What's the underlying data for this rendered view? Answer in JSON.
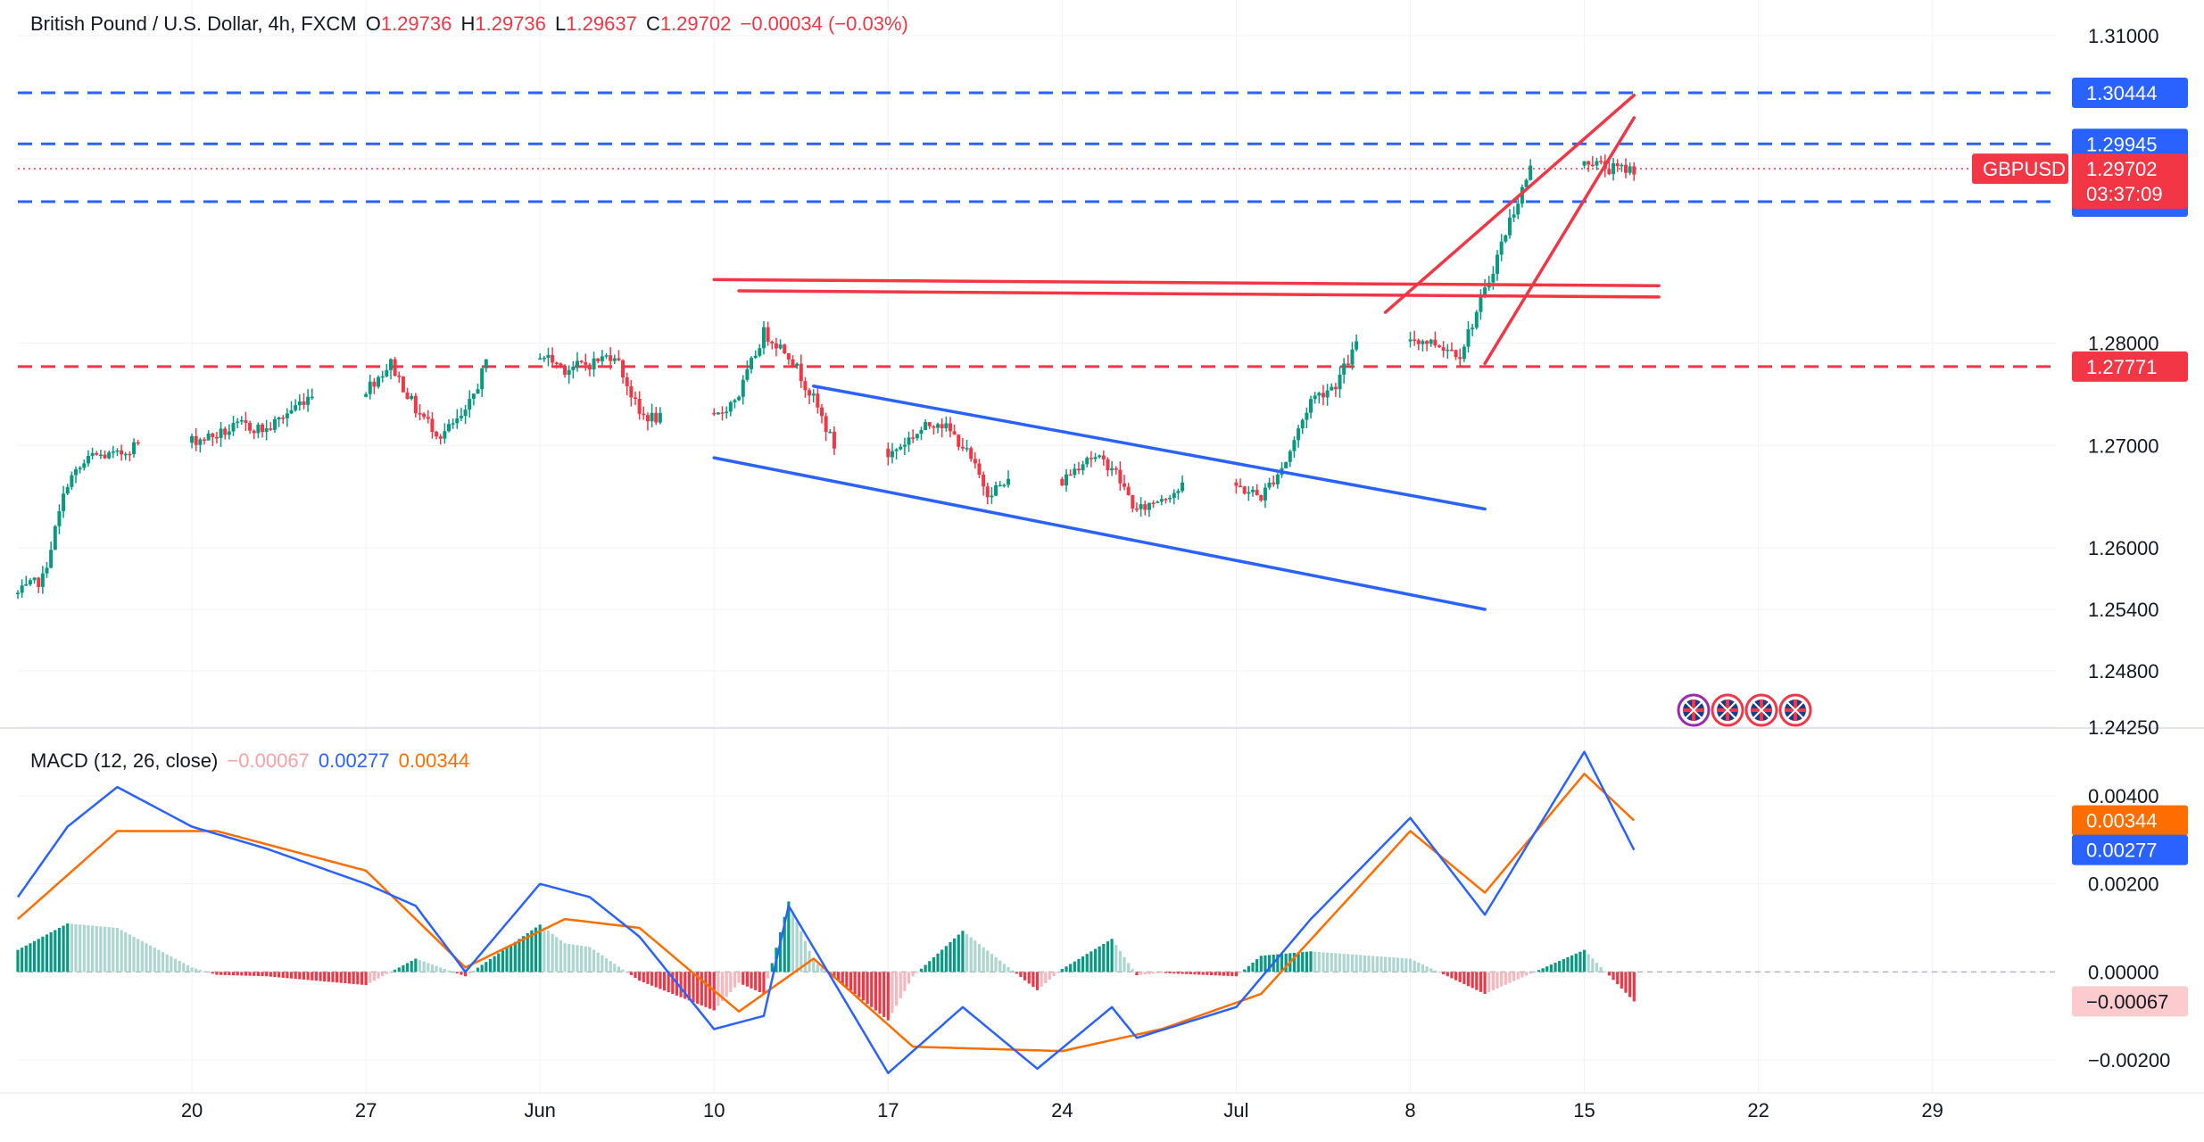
{
  "header": {
    "symbol_title": "British Pound / U.S. Dollar, 4h, FXCM",
    "open_label": "O",
    "open": "1.29736",
    "high_label": "H",
    "high": "1.29736",
    "low_label": "L",
    "low": "1.29637",
    "close_label": "C",
    "close": "1.29702",
    "change": "−0.00034 (−0.03%)"
  },
  "macd_header": {
    "title": "MACD (12, 26, close)",
    "histogram": "−0.00067",
    "macd": "0.00277",
    "signal": "0.00344"
  },
  "colors": {
    "up": "#089981",
    "down": "#f23645",
    "up_light": "#acd6cf",
    "down_light": "#f7b7bd",
    "blue_line": "#2962ff",
    "red_line": "#f23645",
    "macd_line": "#2962ff",
    "signal_line": "#ff6d00"
  },
  "price_axis": {
    "ticks": [
      "1.31000",
      "1.29800",
      "1.28000",
      "1.27000",
      "1.26000",
      "1.25400",
      "1.24800",
      "1.24250"
    ],
    "tick_values": [
      1.31,
      1.298,
      1.28,
      1.27,
      1.26,
      1.254,
      1.248,
      1.2425
    ]
  },
  "price_tags": [
    {
      "label": "1.30444",
      "value": 1.30444,
      "color": "#2962ff",
      "line_style": "dashed"
    },
    {
      "label": "1.29945",
      "value": 1.29945,
      "color": "#2962ff",
      "line_style": "dashed"
    },
    {
      "label": "1.29381",
      "value": 1.29381,
      "color": "#2962ff",
      "line_style": "dashed"
    },
    {
      "label": "1.27771",
      "value": 1.27771,
      "color": "#f23645",
      "line_style": "dashed"
    }
  ],
  "current_price": {
    "symbol_label": "GBPUSD",
    "price_label": "1.29702",
    "value": 1.29702,
    "countdown": "03:37:09"
  },
  "macd_axis": {
    "ticks": [
      "0.00400",
      "0.00200",
      "0.00000",
      "−0.00200"
    ],
    "tick_values": [
      0.004,
      0.002,
      0.0,
      -0.002
    ],
    "signal_tag": "0.00344",
    "signal_value": 0.00344,
    "macd_tag": "0.00277",
    "macd_value": 0.00277,
    "hist_tag": "−0.00067",
    "hist_value": -0.00067
  },
  "time_axis": {
    "labels": [
      "20",
      "27",
      "Jun",
      "10",
      "17",
      "24",
      "Jul",
      "8",
      "15",
      "22",
      "29"
    ],
    "label_dates": [
      "2024-05-20",
      "2024-05-27",
      "2024-06-03",
      "2024-06-10",
      "2024-06-17",
      "2024-06-24",
      "2024-07-01",
      "2024-07-08",
      "2024-07-15",
      "2024-07-22",
      "2024-07-29"
    ]
  },
  "events_icon": "uk-flag-icon",
  "chart_data": {
    "type": "candlestick",
    "symbol": "GBPUSD",
    "interval": "4h",
    "ylim": [
      1.2425,
      1.3135
    ],
    "xlim": [
      "2024-05-13",
      "2024-08-03"
    ],
    "price_path": [
      [
        "2024-05-13",
        1.2555
      ],
      [
        "2024-05-14",
        1.257
      ],
      [
        "2024-05-15",
        1.2665
      ],
      [
        "2024-05-16",
        1.269
      ],
      [
        "2024-05-17",
        1.269
      ],
      [
        "2024-05-20",
        1.2705
      ],
      [
        "2024-05-21",
        1.271
      ],
      [
        "2024-05-22",
        1.272
      ],
      [
        "2024-05-23",
        1.2715
      ],
      [
        "2024-05-24",
        1.2735
      ],
      [
        "2024-05-27",
        1.2755
      ],
      [
        "2024-05-28",
        1.278
      ],
      [
        "2024-05-29",
        1.2735
      ],
      [
        "2024-05-30",
        1.271
      ],
      [
        "2024-05-31",
        1.273
      ],
      [
        "2024-06-03",
        1.279
      ],
      [
        "2024-06-04",
        1.2775
      ],
      [
        "2024-06-05",
        1.278
      ],
      [
        "2024-06-06",
        1.279
      ],
      [
        "2024-06-07",
        1.273
      ],
      [
        "2024-06-10",
        1.2725
      ],
      [
        "2024-06-11",
        1.275
      ],
      [
        "2024-06-12",
        1.281
      ],
      [
        "2024-06-13",
        1.279
      ],
      [
        "2024-06-14",
        1.2745
      ],
      [
        "2024-06-17",
        1.269
      ],
      [
        "2024-06-18",
        1.271
      ],
      [
        "2024-06-19",
        1.2725
      ],
      [
        "2024-06-20",
        1.27
      ],
      [
        "2024-06-21",
        1.2655
      ],
      [
        "2024-06-24",
        1.2665
      ],
      [
        "2024-06-25",
        1.269
      ],
      [
        "2024-06-26",
        1.268
      ],
      [
        "2024-06-27",
        1.2635
      ],
      [
        "2024-06-28",
        1.265
      ],
      [
        "2024-07-01",
        1.266
      ],
      [
        "2024-07-02",
        1.265
      ],
      [
        "2024-07-03",
        1.2685
      ],
      [
        "2024-07-04",
        1.2745
      ],
      [
        "2024-07-05",
        1.276
      ],
      [
        "2024-07-08",
        1.2805
      ],
      [
        "2024-07-09",
        1.28
      ],
      [
        "2024-07-10",
        1.279
      ],
      [
        "2024-07-11",
        1.285
      ],
      [
        "2024-07-12",
        1.292
      ],
      [
        "2024-07-15",
        1.298
      ],
      [
        "2024-07-16",
        1.297
      ],
      [
        "2024-07-17",
        1.297
      ]
    ],
    "annotations": {
      "descending_channel": {
        "color": "#2962ff",
        "upper": [
          [
            "2024-06-14",
            1.2758
          ],
          [
            "2024-07-11",
            1.2638
          ]
        ],
        "lower": [
          [
            "2024-06-10",
            1.2688
          ],
          [
            "2024-07-11",
            1.254
          ]
        ]
      },
      "resistance_lines": {
        "color": "#f23645",
        "line1": [
          [
            "2024-06-10",
            1.2862
          ],
          [
            "2024-07-18",
            1.2856
          ]
        ],
        "line2": [
          [
            "2024-06-11",
            1.2851
          ],
          [
            "2024-07-18",
            1.2845
          ]
        ]
      },
      "rising_wedge": {
        "color": "#f23645",
        "upper": [
          [
            "2024-07-07",
            1.283
          ],
          [
            "2024-07-17",
            1.3042
          ]
        ],
        "lower": [
          [
            "2024-07-11",
            1.278
          ],
          [
            "2024-07-17",
            1.302
          ]
        ]
      },
      "horizontal_levels": [
        1.30444,
        1.29945,
        1.29381,
        1.27771
      ]
    },
    "macd": {
      "ylim": [
        -0.00275,
        0.0055
      ],
      "macd_path": [
        [
          "2024-05-13",
          0.0017
        ],
        [
          "2024-05-15",
          0.0033
        ],
        [
          "2024-05-17",
          0.0042
        ],
        [
          "2024-05-20",
          0.0033
        ],
        [
          "2024-05-23",
          0.0028
        ],
        [
          "2024-05-27",
          0.002
        ],
        [
          "2024-05-29",
          0.0015
        ],
        [
          "2024-05-31",
          0.0
        ],
        [
          "2024-06-03",
          0.002
        ],
        [
          "2024-06-05",
          0.0017
        ],
        [
          "2024-06-07",
          0.0008
        ],
        [
          "2024-06-10",
          -0.0013
        ],
        [
          "2024-06-12",
          -0.001
        ],
        [
          "2024-06-13",
          0.0015
        ],
        [
          "2024-06-17",
          -0.0023
        ],
        [
          "2024-06-20",
          -0.0008
        ],
        [
          "2024-06-23",
          -0.0022
        ],
        [
          "2024-06-26",
          -0.0008
        ],
        [
          "2024-06-27",
          -0.0015
        ],
        [
          "2024-07-01",
          -0.0008
        ],
        [
          "2024-07-04",
          0.0012
        ],
        [
          "2024-07-08",
          0.0035
        ],
        [
          "2024-07-11",
          0.0013
        ],
        [
          "2024-07-15",
          0.005
        ],
        [
          "2024-07-17",
          0.00277
        ]
      ],
      "signal_path": [
        [
          "2024-05-13",
          0.0012
        ],
        [
          "2024-05-17",
          0.0032
        ],
        [
          "2024-05-21",
          0.0032
        ],
        [
          "2024-05-27",
          0.0023
        ],
        [
          "2024-05-31",
          0.0001
        ],
        [
          "2024-06-04",
          0.0012
        ],
        [
          "2024-06-07",
          0.001
        ],
        [
          "2024-06-11",
          -0.0009
        ],
        [
          "2024-06-14",
          0.0003
        ],
        [
          "2024-06-18",
          -0.0017
        ],
        [
          "2024-06-24",
          -0.0018
        ],
        [
          "2024-06-28",
          -0.0013
        ],
        [
          "2024-07-02",
          -0.0005
        ],
        [
          "2024-07-08",
          0.0032
        ],
        [
          "2024-07-11",
          0.0018
        ],
        [
          "2024-07-15",
          0.0045
        ],
        [
          "2024-07-17",
          0.00344
        ]
      ]
    }
  }
}
